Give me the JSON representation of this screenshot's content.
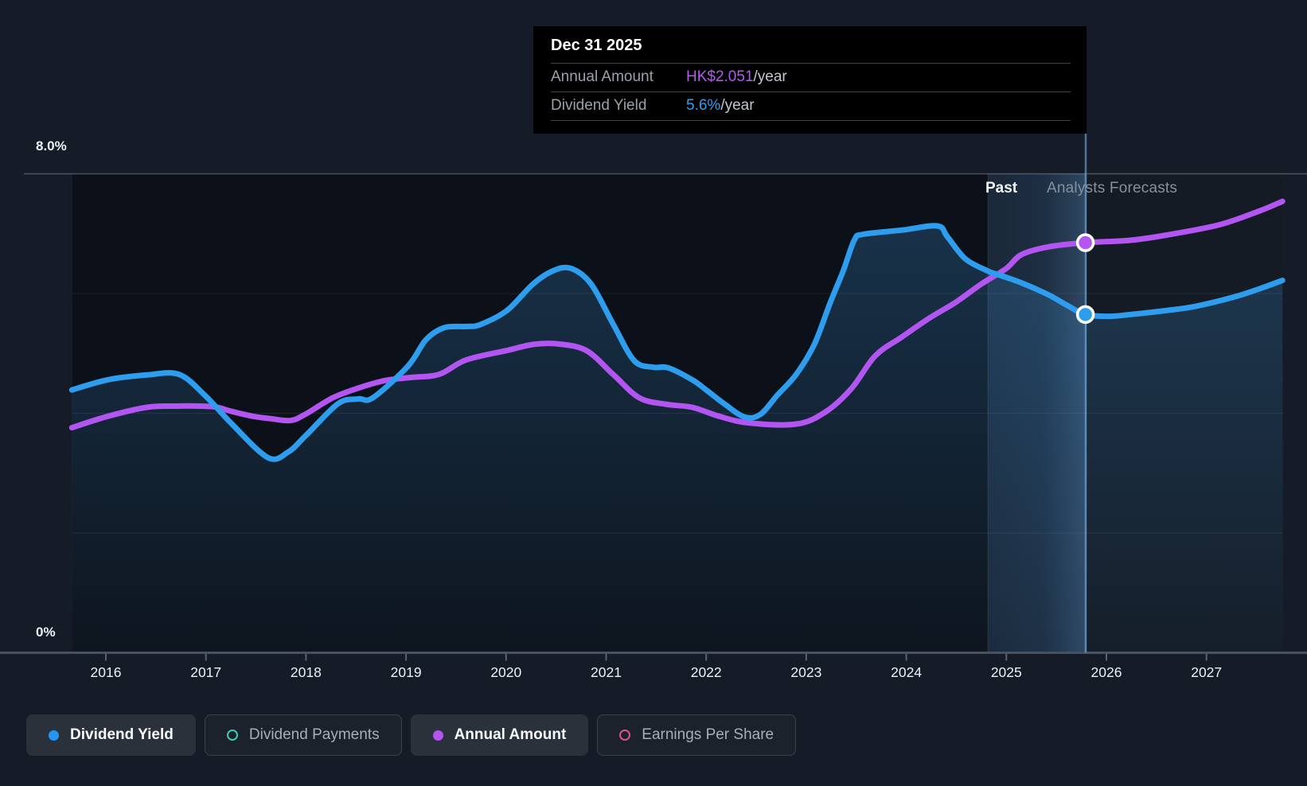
{
  "tooltip": {
    "date": "Dec 31 2025",
    "rows": [
      {
        "label": "Annual Amount",
        "value": "HK$2.051",
        "suffix": "/year",
        "value_color": "#b459f4"
      },
      {
        "label": "Dividend Yield",
        "value": "5.6%",
        "suffix": "/year",
        "value_color": "#2f9ff2"
      }
    ]
  },
  "axis": {
    "y_top_label": "8.0%",
    "y_bottom_label": "0%",
    "years": [
      "2016",
      "2017",
      "2018",
      "2019",
      "2020",
      "2021",
      "2022",
      "2023",
      "2024",
      "2025",
      "2026",
      "2027"
    ]
  },
  "annotations": {
    "past": "Past",
    "forecast": "Analysts Forecasts"
  },
  "legend": [
    {
      "label": "Dividend Yield",
      "color": "#2196f3",
      "style": "filled",
      "active": true
    },
    {
      "label": "Dividend Payments",
      "color": "#3fc9b5",
      "style": "ring",
      "active": false
    },
    {
      "label": "Annual Amount",
      "color": "#b355f0",
      "style": "filled",
      "active": true
    },
    {
      "label": "Earnings Per Share",
      "color": "#d95390",
      "style": "ring",
      "active": false
    }
  ],
  "chart_data": {
    "type": "line",
    "title": "Dividend yield history and analysts forecast",
    "x_range": [
      2015.66,
      2027.76
    ],
    "y_axis": {
      "min": 0,
      "max": 8,
      "unit": "%",
      "gridlines_pct": [
        2,
        4,
        6,
        8
      ],
      "grid": true
    },
    "forecast_band": {
      "start_year": 2024.81,
      "hover_year": 2025.79,
      "past_label": "Past",
      "forecast_label": "Analysts Forecasts"
    },
    "legend_position": "bottom",
    "series": [
      {
        "name": "Dividend Yield",
        "color": "#2f9ded",
        "unit": "%",
        "area_fill": true,
        "points": [
          [
            2015.66,
            4.39
          ],
          [
            2016.02,
            4.56
          ],
          [
            2016.41,
            4.64
          ],
          [
            2016.73,
            4.65
          ],
          [
            2016.99,
            4.3
          ],
          [
            2017.26,
            3.82
          ],
          [
            2017.62,
            3.26
          ],
          [
            2017.82,
            3.35
          ],
          [
            2018.0,
            3.63
          ],
          [
            2018.32,
            4.16
          ],
          [
            2018.52,
            4.24
          ],
          [
            2018.67,
            4.26
          ],
          [
            2019.02,
            4.79
          ],
          [
            2019.2,
            5.23
          ],
          [
            2019.38,
            5.43
          ],
          [
            2019.6,
            5.45
          ],
          [
            2019.74,
            5.48
          ],
          [
            2020.01,
            5.72
          ],
          [
            2020.27,
            6.16
          ],
          [
            2020.47,
            6.38
          ],
          [
            2020.65,
            6.42
          ],
          [
            2020.85,
            6.16
          ],
          [
            2021.07,
            5.49
          ],
          [
            2021.28,
            4.88
          ],
          [
            2021.47,
            4.77
          ],
          [
            2021.62,
            4.76
          ],
          [
            2021.86,
            4.56
          ],
          [
            2022.0,
            4.39
          ],
          [
            2022.18,
            4.16
          ],
          [
            2022.38,
            3.94
          ],
          [
            2022.54,
            3.98
          ],
          [
            2022.71,
            4.3
          ],
          [
            2022.9,
            4.65
          ],
          [
            2023.08,
            5.15
          ],
          [
            2023.24,
            5.85
          ],
          [
            2023.37,
            6.38
          ],
          [
            2023.48,
            6.89
          ],
          [
            2023.57,
            6.99
          ],
          [
            2023.96,
            7.06
          ],
          [
            2024.31,
            7.13
          ],
          [
            2024.41,
            6.95
          ],
          [
            2024.59,
            6.58
          ],
          [
            2024.81,
            6.38
          ],
          [
            2024.91,
            6.32
          ],
          [
            2025.15,
            6.18
          ],
          [
            2025.42,
            5.98
          ],
          [
            2025.6,
            5.81
          ],
          [
            2025.79,
            5.65
          ],
          [
            2026.02,
            5.62
          ],
          [
            2026.24,
            5.65
          ],
          [
            2026.61,
            5.72
          ],
          [
            2026.87,
            5.78
          ],
          [
            2027.27,
            5.94
          ],
          [
            2027.53,
            6.08
          ],
          [
            2027.76,
            6.22
          ]
        ]
      },
      {
        "name": "Annual Amount",
        "color": "#b355f0",
        "unit": "pct-axis-equivalent",
        "note": "HK$ scale not drawn; values are positions on the 0-8% axis. Marker value HK$2.051/year at Dec 31 2025.",
        "points": [
          [
            2015.66,
            3.76
          ],
          [
            2016.02,
            3.95
          ],
          [
            2016.41,
            4.1
          ],
          [
            2016.68,
            4.12
          ],
          [
            2016.95,
            4.12
          ],
          [
            2017.11,
            4.1
          ],
          [
            2017.26,
            4.03
          ],
          [
            2017.47,
            3.95
          ],
          [
            2017.65,
            3.91
          ],
          [
            2017.85,
            3.88
          ],
          [
            2018.0,
            3.99
          ],
          [
            2018.27,
            4.26
          ],
          [
            2018.54,
            4.43
          ],
          [
            2018.8,
            4.55
          ],
          [
            2019.06,
            4.6
          ],
          [
            2019.33,
            4.65
          ],
          [
            2019.6,
            4.89
          ],
          [
            2020.01,
            5.05
          ],
          [
            2020.27,
            5.15
          ],
          [
            2020.51,
            5.16
          ],
          [
            2020.8,
            5.05
          ],
          [
            2021.07,
            4.65
          ],
          [
            2021.33,
            4.26
          ],
          [
            2021.6,
            4.15
          ],
          [
            2021.86,
            4.1
          ],
          [
            2022.13,
            3.95
          ],
          [
            2022.42,
            3.84
          ],
          [
            2022.9,
            3.82
          ],
          [
            2023.19,
            4.02
          ],
          [
            2023.45,
            4.41
          ],
          [
            2023.69,
            4.96
          ],
          [
            2023.96,
            5.28
          ],
          [
            2024.23,
            5.59
          ],
          [
            2024.49,
            5.85
          ],
          [
            2024.75,
            6.16
          ],
          [
            2025.0,
            6.42
          ],
          [
            2025.15,
            6.65
          ],
          [
            2025.42,
            6.78
          ],
          [
            2025.79,
            6.85
          ],
          [
            2026.24,
            6.89
          ],
          [
            2026.61,
            6.98
          ],
          [
            2027.13,
            7.15
          ],
          [
            2027.53,
            7.38
          ],
          [
            2027.76,
            7.54
          ]
        ]
      }
    ],
    "markers": [
      {
        "series": 1,
        "year": 2025.79,
        "label": "HK$2.051/year"
      },
      {
        "series": 0,
        "year": 2025.79,
        "label": "5.6%/year"
      }
    ]
  }
}
